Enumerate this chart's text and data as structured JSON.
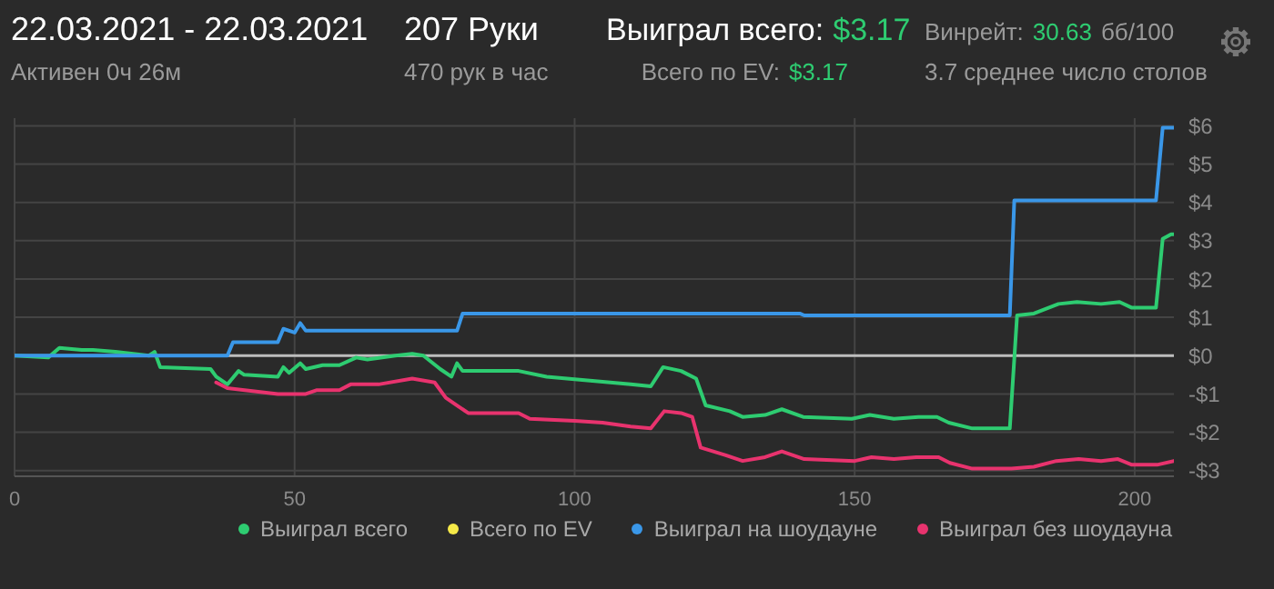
{
  "chart_data": {
    "type": "line",
    "title": "22.03.2021 - 22.03.2021",
    "subtitle": "Активен 0ч 26м",
    "annotations": [
      "207 Руки",
      "470 рук в час",
      "Выиграл всего:",
      "$3.17",
      "Всего по EV:",
      "$3.17",
      "Винрейт:",
      "30.63",
      "бб/100",
      "3.7 среднее число столов"
    ],
    "xlim": [
      0,
      207
    ],
    "xticks": [
      0,
      50,
      100,
      150,
      200
    ],
    "ylim": [
      -3.15,
      6.2
    ],
    "yticks": [
      {
        "value": 6,
        "label": "$6"
      },
      {
        "value": 5,
        "label": "$5"
      },
      {
        "value": 4,
        "label": "$4"
      },
      {
        "value": 3,
        "label": "$3"
      },
      {
        "value": 2,
        "label": "$2"
      },
      {
        "value": 1,
        "label": "$1"
      },
      {
        "value": 0,
        "label": "$0"
      },
      {
        "value": -1,
        "label": "-$1"
      },
      {
        "value": -2,
        "label": "-$2"
      },
      {
        "value": -3,
        "label": "-$3"
      }
    ],
    "grid": true,
    "legend": "bottom",
    "marker": "none",
    "line_style": "solid",
    "ref_lines": [
      {
        "axis": "y",
        "value": 0,
        "color": "#bdbdbd"
      }
    ],
    "series": [
      {
        "name": "Выиграл всего",
        "color": "#2ecc71",
        "x": [
          0,
          6,
          8,
          12,
          14,
          18,
          24,
          25,
          26,
          35,
          36,
          38,
          40,
          41,
          47,
          48,
          49,
          51,
          52,
          55,
          58,
          61,
          63,
          68,
          71,
          73,
          76,
          78,
          79,
          80,
          90,
          95,
          110,
          113.6,
          115.8,
          119,
          121.7,
          123.4,
          127.7,
          130,
          134,
          137,
          140.8,
          149.5,
          152.7,
          157,
          161.4,
          164.7,
          166.8,
          171,
          177.7,
          179,
          182,
          186.4,
          189.7,
          194,
          197.3,
          199.5,
          203.8,
          205,
          206.5,
          207
        ],
        "values": [
          0,
          -0.05,
          0.2,
          0.15,
          0.15,
          0.1,
          0,
          0.1,
          -0.3,
          -0.35,
          -0.55,
          -0.75,
          -0.4,
          -0.5,
          -0.55,
          -0.3,
          -0.45,
          -0.2,
          -0.35,
          -0.25,
          -0.25,
          -0.05,
          -0.1,
          0,
          0.05,
          0,
          -0.35,
          -0.55,
          -0.2,
          -0.4,
          -0.4,
          -0.55,
          -0.75,
          -0.8,
          -0.3,
          -0.4,
          -0.6,
          -1.3,
          -1.45,
          -1.6,
          -1.55,
          -1.4,
          -1.6,
          -1.65,
          -1.55,
          -1.65,
          -1.6,
          -1.6,
          -1.75,
          -1.9,
          -1.9,
          1.05,
          1.1,
          1.35,
          1.4,
          1.35,
          1.4,
          1.25,
          1.25,
          3.05,
          3.17,
          3.17
        ]
      },
      {
        "name": "Всего по EV",
        "color": "#f5e948"
      },
      {
        "name": "Выиграл на шоудауне",
        "color": "#3a97e8",
        "x": [
          0,
          38,
          39,
          47,
          48,
          50,
          51,
          52,
          79,
          80,
          140.2,
          141,
          177.7,
          178.5,
          203.8,
          205,
          207
        ],
        "values": [
          0,
          0,
          0.35,
          0.35,
          0.7,
          0.6,
          0.85,
          0.65,
          0.65,
          1.1,
          1.1,
          1.05,
          1.05,
          4.05,
          4.05,
          5.95,
          5.95
        ]
      },
      {
        "name": "Выиграл без шоудауна",
        "color": "#e8336e",
        "x": [
          36,
          38,
          47,
          52,
          54,
          58,
          60,
          65,
          71,
          75,
          77,
          79,
          81,
          90,
          92,
          100,
          105,
          110,
          113.6,
          116,
          119,
          121,
          122.5,
          127,
          130,
          134,
          137,
          141,
          150,
          153,
          157,
          161,
          165,
          167,
          171,
          178,
          182,
          186,
          190,
          194,
          197,
          199.5,
          204,
          207
        ],
        "values": [
          -0.7,
          -0.85,
          -1.0,
          -1.0,
          -0.9,
          -0.9,
          -0.75,
          -0.75,
          -0.6,
          -0.7,
          -1.1,
          -1.3,
          -1.5,
          -1.5,
          -1.65,
          -1.7,
          -1.75,
          -1.85,
          -1.9,
          -1.45,
          -1.5,
          -1.6,
          -2.4,
          -2.6,
          -2.75,
          -2.65,
          -2.5,
          -2.7,
          -2.75,
          -2.65,
          -2.7,
          -2.65,
          -2.65,
          -2.8,
          -2.95,
          -2.95,
          -2.9,
          -2.75,
          -2.7,
          -2.75,
          -2.7,
          -2.85,
          -2.85,
          -2.75
        ]
      }
    ]
  }
}
